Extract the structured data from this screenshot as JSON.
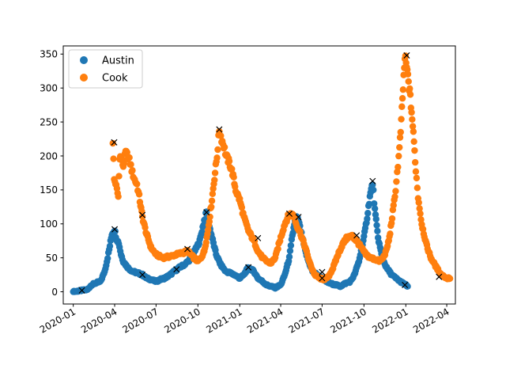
{
  "chart_data": {
    "type": "scatter",
    "title": "",
    "xlabel": "",
    "ylabel": "",
    "x_axis": {
      "type": "date",
      "ticks": [
        "2020-01",
        "2020-04",
        "2020-07",
        "2020-10",
        "2021-01",
        "2021-04",
        "2021-07",
        "2021-10",
        "2022-01",
        "2022-04"
      ]
    },
    "y_axis": {
      "range": [
        -18,
        362
      ],
      "ticks": [
        0,
        50,
        100,
        150,
        200,
        250,
        300,
        350
      ]
    },
    "grid": false,
    "legend": {
      "placement": "top-left"
    },
    "series": [
      {
        "name": "Austin",
        "color": "#1f77b4",
        "marker": "circle",
        "x": [
          "2020-01-01",
          "2020-01-20",
          "2020-02-01",
          "2020-02-10",
          "2020-02-20",
          "2020-03-01",
          "2020-03-10",
          "2020-03-15",
          "2020-03-20",
          "2020-03-26",
          "2020-04-01",
          "2020-04-05",
          "2020-04-10",
          "2020-04-15",
          "2020-04-20",
          "2020-04-25",
          "2020-05-01",
          "2020-05-10",
          "2020-05-20",
          "2020-06-01",
          "2020-06-10",
          "2020-06-20",
          "2020-07-01",
          "2020-07-10",
          "2020-07-20",
          "2020-08-01",
          "2020-08-10",
          "2020-08-20",
          "2020-09-01",
          "2020-09-10",
          "2020-09-20",
          "2020-09-28",
          "2020-10-05",
          "2020-10-10",
          "2020-10-15",
          "2020-10-20",
          "2020-10-25",
          "2020-11-01",
          "2020-11-10",
          "2020-11-20",
          "2020-12-01",
          "2020-12-10",
          "2020-12-20",
          "2021-01-01",
          "2021-01-10",
          "2021-01-20",
          "2021-02-01",
          "2021-02-10",
          "2021-02-20",
          "2021-03-01",
          "2021-03-10",
          "2021-03-20",
          "2021-04-01",
          "2021-04-10",
          "2021-04-20",
          "2021-04-25",
          "2021-05-01",
          "2021-05-05",
          "2021-05-10",
          "2021-05-15",
          "2021-05-20",
          "2021-05-25",
          "2021-06-01",
          "2021-06-10",
          "2021-06-20",
          "2021-07-01",
          "2021-07-10",
          "2021-07-20",
          "2021-08-01",
          "2021-08-10",
          "2021-08-20",
          "2021-09-01",
          "2021-09-10",
          "2021-09-20",
          "2021-10-01",
          "2021-10-08",
          "2021-10-14",
          "2021-10-20",
          "2021-10-25",
          "2021-11-01",
          "2021-11-10",
          "2021-11-20",
          "2021-12-01",
          "2021-12-10",
          "2021-12-20",
          "2022-01-01",
          "2022-01-05"
        ],
        "values": [
          0,
          2,
          3,
          10,
          13,
          15,
          30,
          45,
          62,
          85,
          92,
          78,
          72,
          55,
          45,
          40,
          35,
          30,
          28,
          25,
          20,
          18,
          15,
          18,
          20,
          25,
          30,
          35,
          40,
          45,
          55,
          65,
          75,
          90,
          105,
          117,
          100,
          80,
          55,
          40,
          30,
          28,
          25,
          20,
          25,
          36,
          30,
          20,
          15,
          10,
          8,
          6,
          10,
          25,
          50,
          75,
          100,
          110,
          105,
          90,
          75,
          60,
          45,
          30,
          25,
          20,
          15,
          12,
          10,
          8,
          12,
          15,
          25,
          45,
          80,
          110,
          140,
          160,
          120,
          80,
          50,
          35,
          25,
          20,
          15,
          10,
          8
        ]
      },
      {
        "name": "Cook",
        "color": "#ff7f0e",
        "marker": "circle",
        "x": [
          "2020-03-28",
          "2020-03-31",
          "2020-04-03",
          "2020-04-06",
          "2020-04-09",
          "2020-04-12",
          "2020-04-16",
          "2020-04-20",
          "2020-04-25",
          "2020-04-30",
          "2020-05-05",
          "2020-05-10",
          "2020-05-15",
          "2020-05-20",
          "2020-05-25",
          "2020-06-01",
          "2020-06-10",
          "2020-06-20",
          "2020-07-01",
          "2020-07-15",
          "2020-08-01",
          "2020-08-15",
          "2020-09-01",
          "2020-09-08",
          "2020-09-15",
          "2020-09-22",
          "2020-10-01",
          "2020-10-08",
          "2020-10-15",
          "2020-10-22",
          "2020-10-29",
          "2020-11-05",
          "2020-11-12",
          "2020-11-17",
          "2020-11-22",
          "2020-11-27",
          "2020-12-02",
          "2020-12-09",
          "2020-12-16",
          "2020-12-23",
          "2021-01-01",
          "2021-01-10",
          "2021-01-20",
          "2021-02-01",
          "2021-02-10",
          "2021-02-20",
          "2021-03-01",
          "2021-03-10",
          "2021-03-20",
          "2021-04-01",
          "2021-04-10",
          "2021-04-20",
          "2021-04-30",
          "2021-05-05",
          "2021-05-15",
          "2021-05-25",
          "2021-06-05",
          "2021-06-15",
          "2021-06-25",
          "2021-07-05",
          "2021-07-15",
          "2021-07-25",
          "2021-08-05",
          "2021-08-15",
          "2021-08-25",
          "2021-09-05",
          "2021-09-15",
          "2021-09-25",
          "2021-10-05",
          "2021-10-15",
          "2021-10-25",
          "2021-11-05",
          "2021-11-12",
          "2021-11-19",
          "2021-11-26",
          "2021-12-02",
          "2021-12-08",
          "2021-12-13",
          "2021-12-18",
          "2021-12-22",
          "2021-12-26",
          "2021-12-30",
          "2022-01-03",
          "2022-01-07",
          "2022-01-11",
          "2022-01-15",
          "2022-01-19",
          "2022-01-23",
          "2022-01-28",
          "2022-02-05",
          "2022-02-15",
          "2022-02-25",
          "2022-03-10",
          "2022-03-20",
          "2022-04-01",
          "2022-04-08"
        ],
        "values": [
          222,
          165,
          160,
          150,
          140,
          200,
          195,
          185,
          205,
          200,
          190,
          175,
          165,
          158,
          140,
          110,
          85,
          65,
          55,
          50,
          52,
          55,
          58,
          60,
          55,
          50,
          45,
          50,
          60,
          85,
          120,
          160,
          200,
          238,
          225,
          215,
          200,
          190,
          175,
          150,
          135,
          110,
          90,
          75,
          60,
          50,
          45,
          42,
          50,
          80,
          100,
          115,
          112,
          100,
          85,
          65,
          40,
          25,
          20,
          18,
          22,
          35,
          55,
          70,
          80,
          82,
          75,
          65,
          55,
          50,
          48,
          45,
          50,
          60,
          80,
          110,
          140,
          175,
          210,
          250,
          300,
          345,
          330,
          310,
          285,
          255,
          220,
          180,
          140,
          100,
          70,
          50,
          35,
          25,
          20,
          20
        ]
      }
    ],
    "markers": {
      "symbol": "x",
      "color": "#000000",
      "points": [
        {
          "series": "Austin",
          "x": "2020-01-20",
          "y": 2
        },
        {
          "series": "Austin",
          "x": "2020-04-01",
          "y": 92
        },
        {
          "series": "Austin",
          "x": "2020-06-01",
          "y": 25
        },
        {
          "series": "Austin",
          "x": "2020-08-15",
          "y": 33
        },
        {
          "series": "Austin",
          "x": "2020-10-20",
          "y": 117
        },
        {
          "series": "Austin",
          "x": "2021-01-20",
          "y": 36
        },
        {
          "series": "Austin",
          "x": "2021-05-10",
          "y": 110
        },
        {
          "series": "Austin",
          "x": "2021-07-01",
          "y": 20
        },
        {
          "series": "Austin",
          "x": "2021-10-20",
          "y": 163
        },
        {
          "series": "Austin",
          "x": "2021-12-30",
          "y": 10
        },
        {
          "series": "Cook",
          "x": "2020-03-31",
          "y": 220
        },
        {
          "series": "Cook",
          "x": "2020-06-01",
          "y": 113
        },
        {
          "series": "Cook",
          "x": "2020-09-08",
          "y": 63
        },
        {
          "series": "Cook",
          "x": "2020-11-17",
          "y": 239
        },
        {
          "series": "Cook",
          "x": "2021-02-10",
          "y": 79
        },
        {
          "series": "Cook",
          "x": "2021-04-20",
          "y": 115
        },
        {
          "series": "Cook",
          "x": "2021-07-01",
          "y": 29
        },
        {
          "series": "Cook",
          "x": "2021-09-15",
          "y": 83
        },
        {
          "series": "Cook",
          "x": "2022-01-03",
          "y": 348
        },
        {
          "series": "Cook",
          "x": "2022-03-15",
          "y": 22
        }
      ]
    }
  }
}
